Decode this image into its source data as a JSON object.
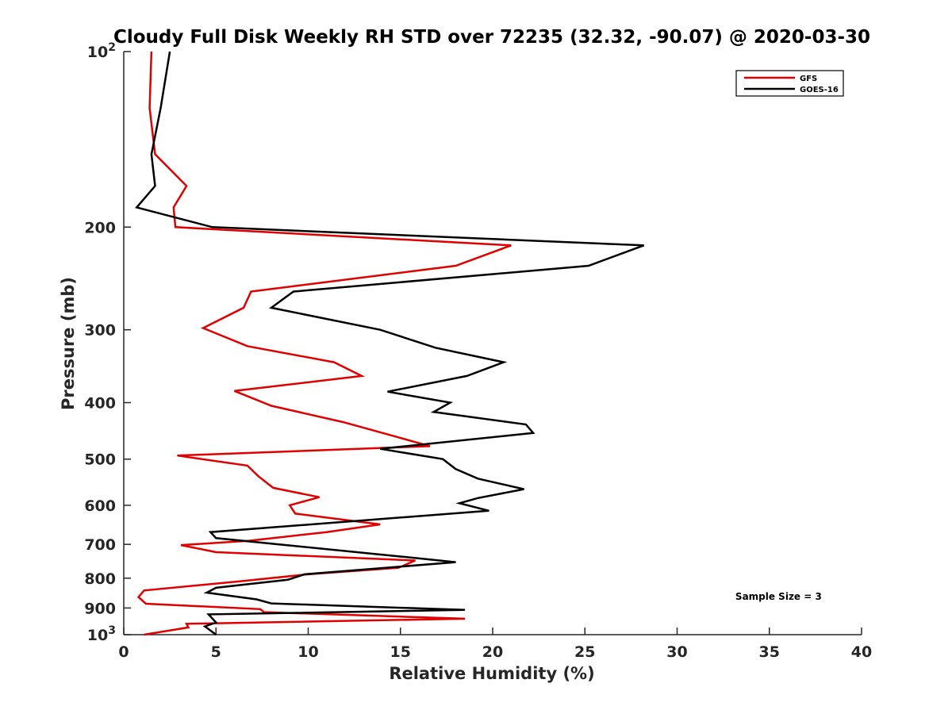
{
  "chart_data": {
    "type": "line",
    "title": "Cloudy Full Disk Weekly RH STD over 72235 (32.32, -90.07) @ 2020-03-30",
    "xlabel": "Relative Humidity (%)",
    "ylabel": "Pressure (mb)",
    "xlim": [
      0,
      40
    ],
    "ylim": [
      100,
      1000
    ],
    "yscale": "log",
    "y_reversed": true,
    "xticks": [
      0,
      5,
      10,
      15,
      20,
      25,
      30,
      35,
      40
    ],
    "yticks": [
      {
        "value": 100,
        "label": "10",
        "sup": "2"
      },
      {
        "value": 200,
        "label": "200",
        "sup": ""
      },
      {
        "value": 300,
        "label": "300",
        "sup": ""
      },
      {
        "value": 400,
        "label": "400",
        "sup": ""
      },
      {
        "value": 500,
        "label": "500",
        "sup": ""
      },
      {
        "value": 600,
        "label": "600",
        "sup": ""
      },
      {
        "value": 700,
        "label": "700",
        "sup": ""
      },
      {
        "value": 800,
        "label": "800",
        "sup": ""
      },
      {
        "value": 900,
        "label": "900",
        "sup": ""
      },
      {
        "value": 1000,
        "label": "10",
        "sup": "3"
      }
    ],
    "legend_position": "top-right",
    "series": [
      {
        "name": "GFS",
        "color": "#e00000",
        "points": [
          [
            1.5,
            100
          ],
          [
            1.4,
            125
          ],
          [
            1.7,
            150
          ],
          [
            3.4,
            170
          ],
          [
            2.7,
            185
          ],
          [
            2.8,
            200
          ],
          [
            21.0,
            215
          ],
          [
            18.0,
            233
          ],
          [
            6.9,
            258
          ],
          [
            6.5,
            275
          ],
          [
            4.3,
            298
          ],
          [
            6.7,
            320
          ],
          [
            11.4,
            341
          ],
          [
            12.9,
            360
          ],
          [
            6.0,
            382
          ],
          [
            8.0,
            405
          ],
          [
            11.9,
            432
          ],
          [
            14.8,
            458
          ],
          [
            16.6,
            475
          ],
          [
            2.9,
            493
          ],
          [
            6.7,
            513
          ],
          [
            7.3,
            535
          ],
          [
            8.1,
            560
          ],
          [
            10.6,
            581
          ],
          [
            9.0,
            600
          ],
          [
            9.3,
            620
          ],
          [
            13.9,
            647
          ],
          [
            11.0,
            667
          ],
          [
            6.8,
            690
          ],
          [
            3.1,
            702
          ],
          [
            5.0,
            722
          ],
          [
            15.8,
            746
          ],
          [
            14.9,
            768
          ],
          [
            10.0,
            788
          ],
          [
            6.3,
            810
          ],
          [
            1.1,
            840
          ],
          [
            0.8,
            862
          ],
          [
            1.2,
            885
          ],
          [
            7.4,
            904
          ],
          [
            7.6,
            915
          ],
          [
            18.5,
            939
          ],
          [
            3.4,
            958
          ],
          [
            3.5,
            972
          ],
          [
            1.1,
            1000
          ]
        ]
      },
      {
        "name": "GOES-16",
        "color": "#000000",
        "points": [
          [
            2.5,
            100
          ],
          [
            2.0,
            125
          ],
          [
            1.5,
            150
          ],
          [
            1.7,
            170
          ],
          [
            0.7,
            185
          ],
          [
            4.8,
            200
          ],
          [
            28.2,
            215
          ],
          [
            25.2,
            233
          ],
          [
            9.2,
            258
          ],
          [
            8.0,
            275
          ],
          [
            13.9,
            300
          ],
          [
            16.9,
            322
          ],
          [
            20.6,
            341
          ],
          [
            18.6,
            360
          ],
          [
            14.3,
            383
          ],
          [
            17.7,
            400
          ],
          [
            16.8,
            415
          ],
          [
            21.8,
            436
          ],
          [
            22.2,
            451
          ],
          [
            13.9,
            480
          ],
          [
            17.3,
            500
          ],
          [
            18.0,
            520
          ],
          [
            19.2,
            540
          ],
          [
            21.7,
            563
          ],
          [
            19.2,
            583
          ],
          [
            18.2,
            595
          ],
          [
            19.8,
            613
          ],
          [
            4.7,
            667
          ],
          [
            5.0,
            683
          ],
          [
            15.1,
            735
          ],
          [
            18.0,
            751
          ],
          [
            9.8,
            788
          ],
          [
            8.9,
            805
          ],
          [
            5.0,
            831
          ],
          [
            4.5,
            847
          ],
          [
            7.2,
            870
          ],
          [
            8.0,
            884
          ],
          [
            18.5,
            907
          ],
          [
            4.6,
            923
          ],
          [
            5.0,
            953
          ],
          [
            4.4,
            968
          ],
          [
            5.0,
            1000
          ]
        ]
      }
    ],
    "annotations": [
      {
        "text": "Sample Size = 3",
        "x": 35.5,
        "y": 860
      }
    ]
  }
}
